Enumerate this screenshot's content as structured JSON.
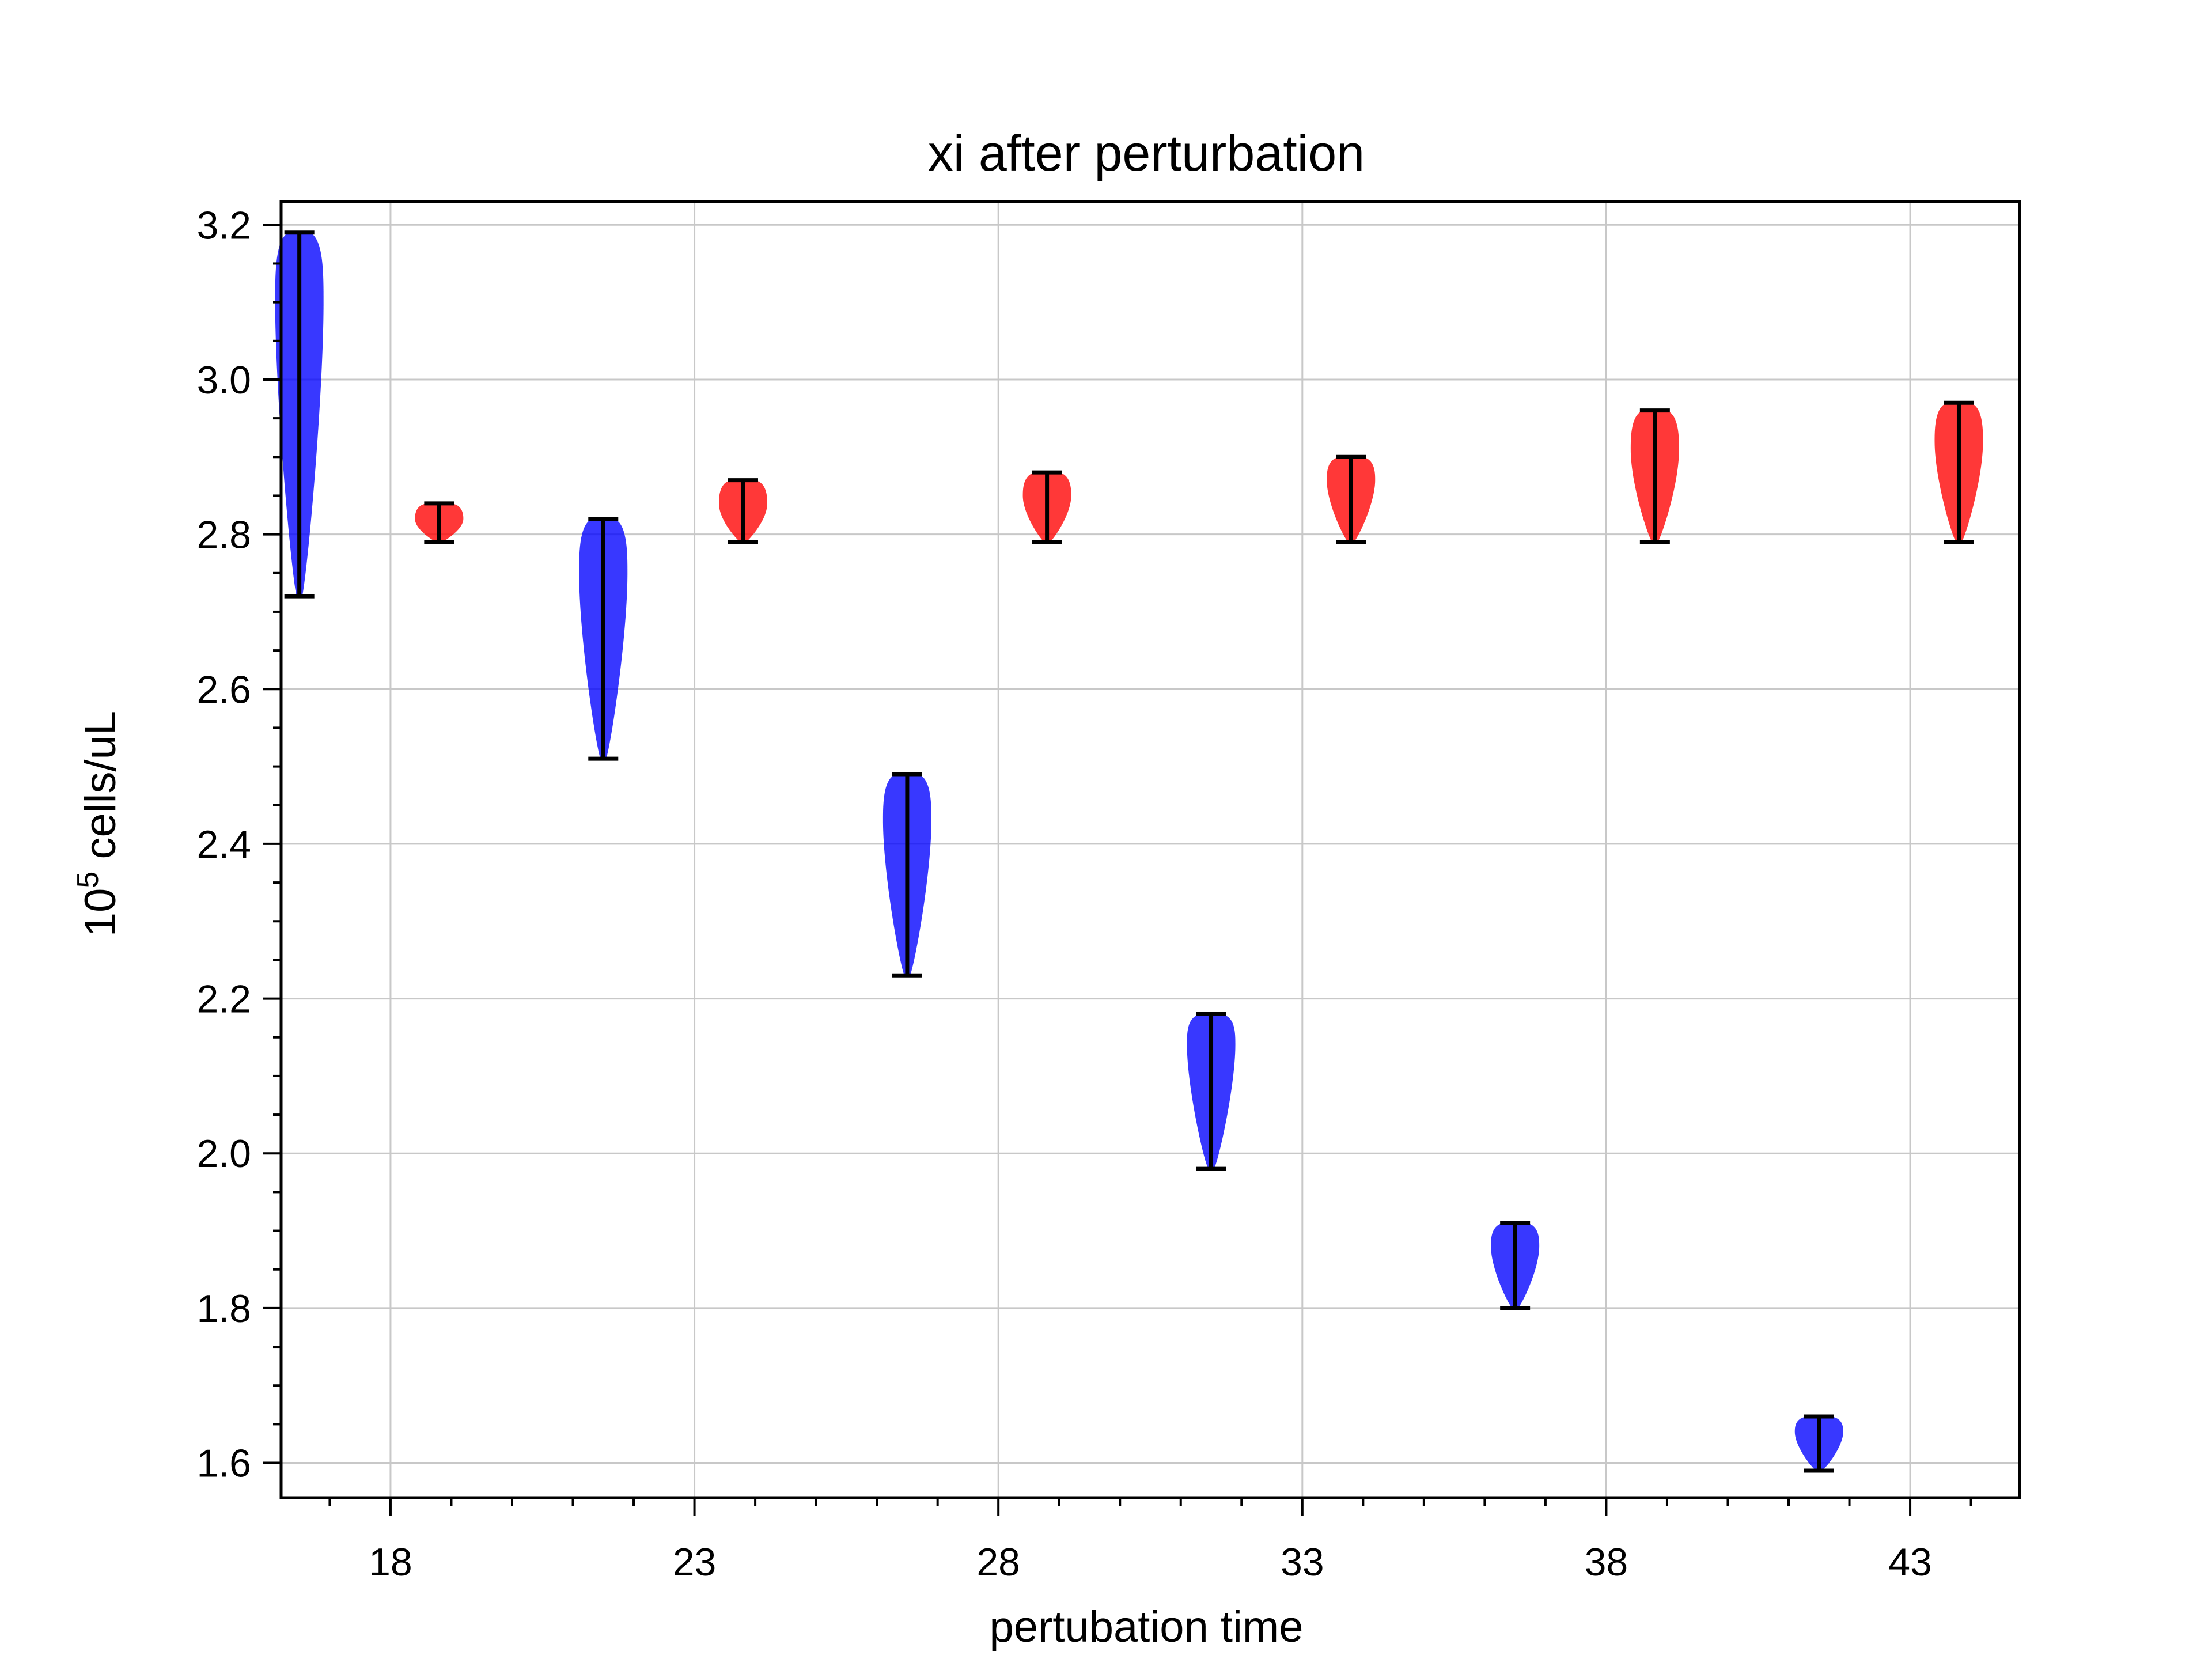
{
  "chart_data": {
    "type": "violin",
    "title": "xi after perturbation",
    "xlabel": "pertubation time",
    "ylabel_base": "10",
    "ylabel_exponent": "5",
    "ylabel_rest": " cells/uL",
    "xlim": [
      16.2,
      44.8
    ],
    "ylim": [
      1.555,
      3.23
    ],
    "x_ticks": [
      18,
      23,
      28,
      33,
      38,
      43
    ],
    "y_ticks": [
      1.6,
      1.8,
      2.0,
      2.2,
      2.4,
      2.6,
      2.8,
      3.0,
      3.2
    ],
    "x_minor_step": 1,
    "y_minor_step": 0.05,
    "grid": true,
    "series": [
      {
        "color": "#0000ff",
        "violins": [
          {
            "x": 16.5,
            "min": 2.72,
            "max": 3.19,
            "peak": 3.1
          },
          {
            "x": 21.5,
            "min": 2.51,
            "max": 2.82,
            "peak": 2.75
          },
          {
            "x": 26.5,
            "min": 2.23,
            "max": 2.49,
            "peak": 2.43
          },
          {
            "x": 31.5,
            "min": 1.98,
            "max": 2.18,
            "peak": 2.14
          },
          {
            "x": 36.5,
            "min": 1.8,
            "max": 1.91,
            "peak": 1.88
          },
          {
            "x": 41.5,
            "min": 1.59,
            "max": 1.66,
            "peak": 1.64
          }
        ]
      },
      {
        "color": "#ff0000",
        "violins": [
          {
            "x": 18.8,
            "min": 2.79,
            "max": 2.84,
            "peak": 2.82
          },
          {
            "x": 23.8,
            "min": 2.79,
            "max": 2.87,
            "peak": 2.84
          },
          {
            "x": 28.8,
            "min": 2.79,
            "max": 2.88,
            "peak": 2.85
          },
          {
            "x": 33.8,
            "min": 2.79,
            "max": 2.9,
            "peak": 2.87
          },
          {
            "x": 38.8,
            "min": 2.79,
            "max": 2.96,
            "peak": 2.91
          },
          {
            "x": 43.8,
            "min": 2.79,
            "max": 2.97,
            "peak": 2.92
          }
        ]
      }
    ]
  }
}
